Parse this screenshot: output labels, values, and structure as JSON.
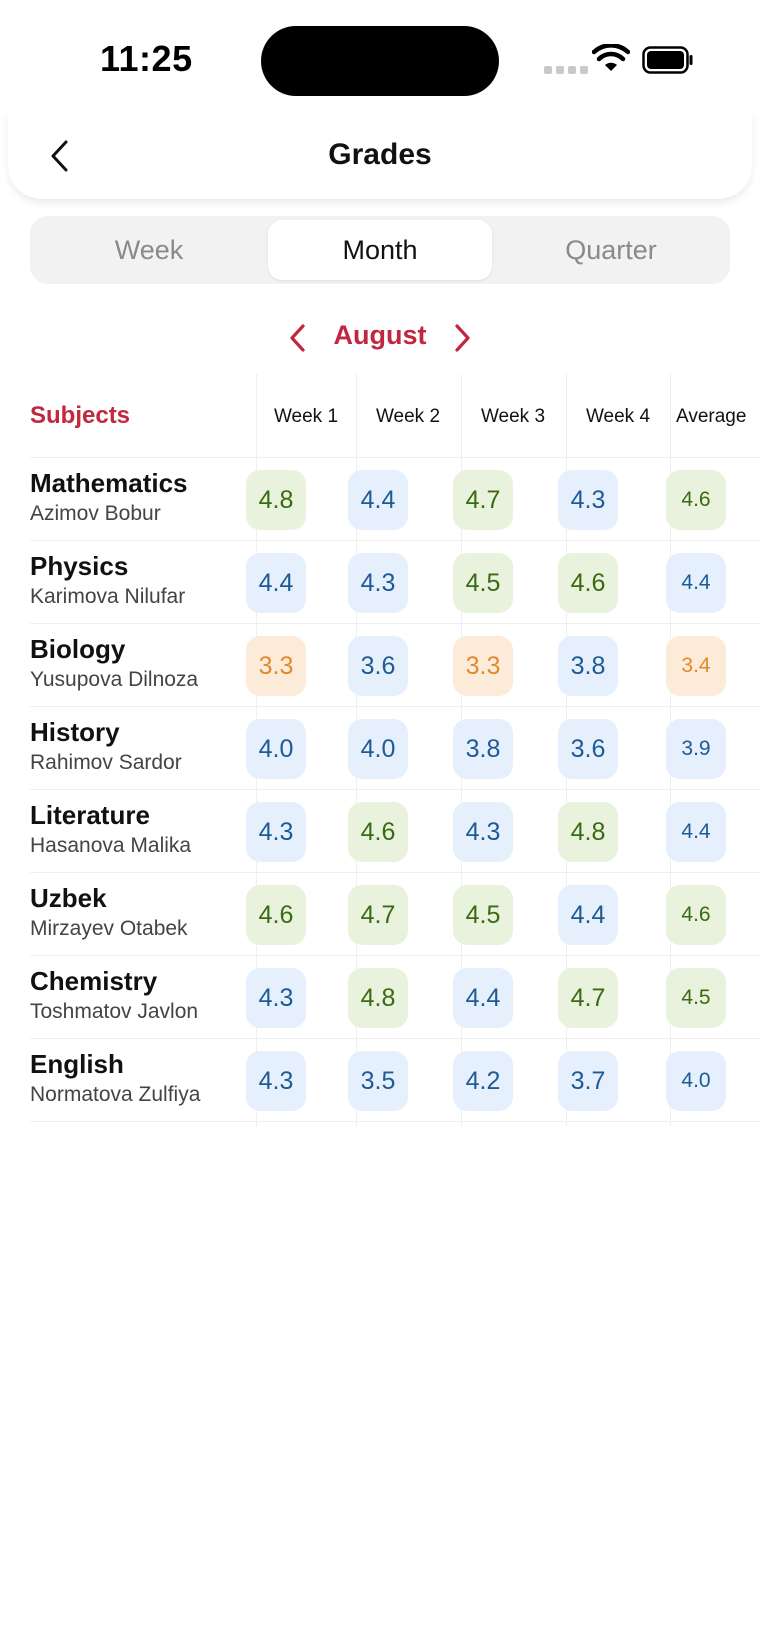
{
  "status_bar": {
    "time": "11:25"
  },
  "header": {
    "title": "Grades"
  },
  "segments": [
    {
      "label": "Week",
      "active": false
    },
    {
      "label": "Month",
      "active": true
    },
    {
      "label": "Quarter",
      "active": false
    }
  ],
  "month_nav": {
    "label": "August"
  },
  "table": {
    "subjects_header": "Subjects",
    "columns": [
      "Week 1",
      "Week 2",
      "Week 3",
      "Week 4",
      "Average"
    ],
    "rows": [
      {
        "subject": "Mathematics",
        "teacher": "Azimov Bobur",
        "grades": [
          "4.8",
          "4.4",
          "4.7",
          "4.3",
          "4.6"
        ],
        "colors": [
          "green",
          "blue",
          "green",
          "blue",
          "green"
        ]
      },
      {
        "subject": "Physics",
        "teacher": "Karimova Nilufar",
        "grades": [
          "4.4",
          "4.3",
          "4.5",
          "4.6",
          "4.4"
        ],
        "colors": [
          "blue",
          "blue",
          "green",
          "green",
          "blue"
        ]
      },
      {
        "subject": "Biology",
        "teacher": "Yusupova Dilnoza",
        "grades": [
          "3.3",
          "3.6",
          "3.3",
          "3.8",
          "3.4"
        ],
        "colors": [
          "orange",
          "blue",
          "orange",
          "blue",
          "orange"
        ]
      },
      {
        "subject": "History",
        "teacher": "Rahimov Sardor",
        "grades": [
          "4.0",
          "4.0",
          "3.8",
          "3.6",
          "3.9"
        ],
        "colors": [
          "blue",
          "blue",
          "blue",
          "blue",
          "blue"
        ]
      },
      {
        "subject": "Literature",
        "teacher": "Hasanova Malika",
        "grades": [
          "4.3",
          "4.6",
          "4.3",
          "4.8",
          "4.4"
        ],
        "colors": [
          "blue",
          "green",
          "blue",
          "green",
          "blue"
        ]
      },
      {
        "subject": "Uzbek",
        "teacher": "Mirzayev Otabek",
        "grades": [
          "4.6",
          "4.7",
          "4.5",
          "4.4",
          "4.6"
        ],
        "colors": [
          "green",
          "green",
          "green",
          "blue",
          "green"
        ]
      },
      {
        "subject": "Chemistry",
        "teacher": "Toshmatov Javlon",
        "grades": [
          "4.3",
          "4.8",
          "4.4",
          "4.7",
          "4.5"
        ],
        "colors": [
          "blue",
          "green",
          "blue",
          "green",
          "green"
        ]
      },
      {
        "subject": "English",
        "teacher": "Normatova Zulfiya",
        "grades": [
          "4.3",
          "3.5",
          "4.2",
          "3.7",
          "4.0"
        ],
        "colors": [
          "blue",
          "blue",
          "blue",
          "blue",
          "blue"
        ]
      }
    ]
  },
  "colors": {
    "accent": "#c1273f",
    "green_text": "#3a6b12",
    "blue_text": "#1f5a96",
    "orange_text": "#e3892a"
  }
}
